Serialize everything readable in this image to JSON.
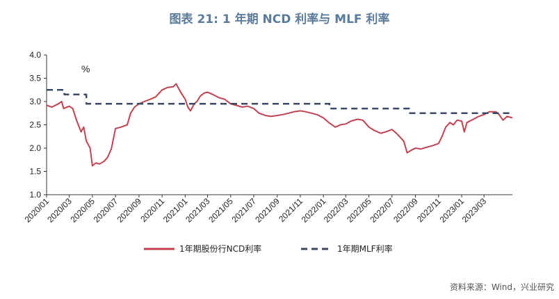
{
  "figure": {
    "title": "图表 21: 1 年期 NCD 利率与 MLF 利率",
    "source": "资料来源：Wind，兴业研究"
  },
  "chart_data": {
    "type": "line",
    "title": "图表 21: 1 年期 NCD 利率与 MLF 利率",
    "unit": "%",
    "xlabel": "",
    "ylabel": "%",
    "ylim": [
      1.0,
      4.0
    ],
    "yticks": [
      "1.0",
      "1.5",
      "2.0",
      "2.5",
      "3.0",
      "3.5",
      "4.0"
    ],
    "xlim": [
      "2020-01",
      "2023-05-15"
    ],
    "xticks": [
      "2020/01",
      "2020/03",
      "2020/05",
      "2020/07",
      "2020/09",
      "2020/11",
      "2021/01",
      "2021/03",
      "2021/05",
      "2021/07",
      "2021/09",
      "2021/11",
      "2022/01",
      "2022/03",
      "2022/05",
      "2022/07",
      "2022/09",
      "2022/11",
      "2023/01",
      "2023/03"
    ],
    "grid": false,
    "legend_position": "bottom",
    "series": [
      {
        "name": "1年期股份行NCD利率",
        "color": "#c0414f",
        "style": "solid",
        "points": [
          [
            "2020-01-01",
            2.92
          ],
          [
            "2020-01-15",
            2.88
          ],
          [
            "2020-02-01",
            2.95
          ],
          [
            "2020-02-10",
            3.0
          ],
          [
            "2020-02-15",
            2.85
          ],
          [
            "2020-03-01",
            2.9
          ],
          [
            "2020-03-10",
            2.85
          ],
          [
            "2020-03-20",
            2.6
          ],
          [
            "2020-04-01",
            2.35
          ],
          [
            "2020-04-08",
            2.45
          ],
          [
            "2020-04-15",
            2.15
          ],
          [
            "2020-04-25",
            2.0
          ],
          [
            "2020-05-01",
            1.62
          ],
          [
            "2020-05-10",
            1.68
          ],
          [
            "2020-05-20",
            1.66
          ],
          [
            "2020-06-01",
            1.72
          ],
          [
            "2020-06-10",
            1.8
          ],
          [
            "2020-06-20",
            1.98
          ],
          [
            "2020-07-01",
            2.42
          ],
          [
            "2020-07-15",
            2.45
          ],
          [
            "2020-08-01",
            2.5
          ],
          [
            "2020-08-10",
            2.75
          ],
          [
            "2020-08-20",
            2.88
          ],
          [
            "2020-09-01",
            2.95
          ],
          [
            "2020-09-15",
            3.0
          ],
          [
            "2020-10-01",
            3.05
          ],
          [
            "2020-10-15",
            3.1
          ],
          [
            "2020-11-01",
            3.25
          ],
          [
            "2020-11-15",
            3.3
          ],
          [
            "2020-12-01",
            3.32
          ],
          [
            "2020-12-08",
            3.38
          ],
          [
            "2020-12-20",
            3.2
          ],
          [
            "2021-01-01",
            3.05
          ],
          [
            "2021-01-08",
            2.88
          ],
          [
            "2021-01-15",
            2.8
          ],
          [
            "2021-01-25",
            2.95
          ],
          [
            "2021-02-01",
            3.0
          ],
          [
            "2021-02-10",
            3.12
          ],
          [
            "2021-02-20",
            3.18
          ],
          [
            "2021-03-01",
            3.2
          ],
          [
            "2021-03-15",
            3.15
          ],
          [
            "2021-04-01",
            3.08
          ],
          [
            "2021-04-15",
            3.05
          ],
          [
            "2021-05-01",
            2.95
          ],
          [
            "2021-05-15",
            2.92
          ],
          [
            "2021-06-01",
            2.88
          ],
          [
            "2021-06-15",
            2.9
          ],
          [
            "2021-07-01",
            2.85
          ],
          [
            "2021-07-15",
            2.75
          ],
          [
            "2021-08-01",
            2.7
          ],
          [
            "2021-08-15",
            2.68
          ],
          [
            "2021-09-01",
            2.7
          ],
          [
            "2021-09-15",
            2.72
          ],
          [
            "2021-10-01",
            2.75
          ],
          [
            "2021-10-15",
            2.78
          ],
          [
            "2021-11-01",
            2.8
          ],
          [
            "2021-11-15",
            2.78
          ],
          [
            "2021-12-01",
            2.75
          ],
          [
            "2021-12-15",
            2.72
          ],
          [
            "2022-01-01",
            2.65
          ],
          [
            "2022-01-15",
            2.55
          ],
          [
            "2022-02-01",
            2.45
          ],
          [
            "2022-02-15",
            2.5
          ],
          [
            "2022-03-01",
            2.52
          ],
          [
            "2022-03-15",
            2.58
          ],
          [
            "2022-04-01",
            2.62
          ],
          [
            "2022-04-15",
            2.6
          ],
          [
            "2022-05-01",
            2.45
          ],
          [
            "2022-05-15",
            2.38
          ],
          [
            "2022-06-01",
            2.32
          ],
          [
            "2022-06-15",
            2.35
          ],
          [
            "2022-07-01",
            2.4
          ],
          [
            "2022-07-15",
            2.3
          ],
          [
            "2022-08-01",
            2.15
          ],
          [
            "2022-08-10",
            1.9
          ],
          [
            "2022-08-20",
            1.95
          ],
          [
            "2022-09-01",
            2.0
          ],
          [
            "2022-09-15",
            1.98
          ],
          [
            "2022-10-01",
            2.02
          ],
          [
            "2022-10-15",
            2.05
          ],
          [
            "2022-11-01",
            2.1
          ],
          [
            "2022-11-10",
            2.25
          ],
          [
            "2022-11-20",
            2.45
          ],
          [
            "2022-12-01",
            2.55
          ],
          [
            "2022-12-10",
            2.5
          ],
          [
            "2022-12-20",
            2.6
          ],
          [
            "2023-01-01",
            2.58
          ],
          [
            "2023-01-08",
            2.35
          ],
          [
            "2023-01-15",
            2.55
          ],
          [
            "2023-02-01",
            2.62
          ],
          [
            "2023-02-15",
            2.68
          ],
          [
            "2023-03-01",
            2.72
          ],
          [
            "2023-03-15",
            2.78
          ],
          [
            "2023-04-01",
            2.78
          ],
          [
            "2023-04-10",
            2.72
          ],
          [
            "2023-04-20",
            2.6
          ],
          [
            "2023-05-01",
            2.68
          ],
          [
            "2023-05-15",
            2.65
          ]
        ]
      },
      {
        "name": "1年期MLF利率",
        "color": "#3b4a64",
        "style": "dashed",
        "points": [
          [
            "2020-01-01",
            3.25
          ],
          [
            "2020-02-17",
            3.25
          ],
          [
            "2020-02-17",
            3.15
          ],
          [
            "2020-04-15",
            3.15
          ],
          [
            "2020-04-15",
            2.95
          ],
          [
            "2022-01-17",
            2.95
          ],
          [
            "2022-01-17",
            2.85
          ],
          [
            "2022-08-15",
            2.85
          ],
          [
            "2022-08-15",
            2.75
          ],
          [
            "2023-05-15",
            2.75
          ]
        ]
      }
    ]
  }
}
